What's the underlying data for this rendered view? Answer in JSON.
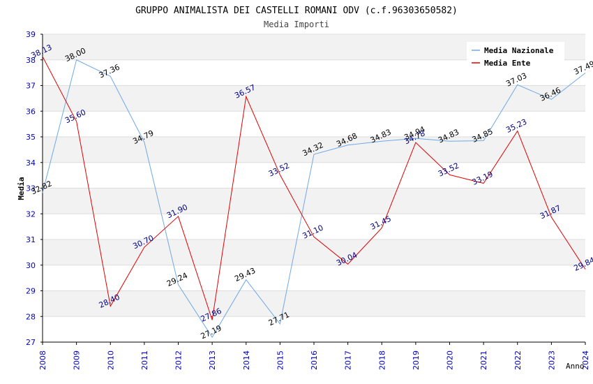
{
  "chart_data": {
    "type": "line",
    "title": "GRUPPO ANIMALISTA DEI CASTELLI ROMANI ODV (c.f.96303650582)",
    "subtitle": "Media Importi",
    "xlabel": "Anno",
    "ylabel": "Media",
    "x": [
      "2008",
      "2009",
      "2010",
      "2011",
      "2012",
      "2013",
      "2014",
      "2015",
      "2016",
      "2017",
      "2018",
      "2019",
      "2020",
      "2021",
      "2022",
      "2023",
      "2024"
    ],
    "ylim": [
      27,
      39
    ],
    "yticks": [
      "27",
      "28",
      "29",
      "30",
      "31",
      "32",
      "33",
      "34",
      "35",
      "36",
      "37",
      "38",
      "39"
    ],
    "grid": true,
    "legend_position": "top-right",
    "series": [
      {
        "name": "Media Nazionale",
        "color": "#6fa8e8",
        "label_color": "#000000",
        "values": [
          32.82,
          38.0,
          37.36,
          34.79,
          29.24,
          27.19,
          29.43,
          27.71,
          34.32,
          34.68,
          34.83,
          34.94,
          34.83,
          34.85,
          37.03,
          36.46,
          37.49
        ],
        "labels": [
          "32.82",
          "38.00",
          "37.36",
          "34.79",
          "29.24",
          "27.19",
          "29.43",
          "27.71",
          "34.32",
          "34.68",
          "34.83",
          "34.94",
          "34.83",
          "34.85",
          "37.03",
          "36.46",
          "37.49"
        ]
      },
      {
        "name": "Media Ente",
        "color": "#e00000",
        "label_color": "#00007f",
        "values": [
          38.13,
          35.6,
          28.4,
          30.7,
          31.9,
          27.86,
          36.57,
          33.52,
          31.1,
          30.04,
          31.45,
          34.78,
          33.52,
          33.19,
          35.23,
          31.87,
          29.84
        ],
        "labels": [
          "38.13",
          "35.60",
          "28.40",
          "30.70",
          "31.90",
          "27.86",
          "36.57",
          "33.52",
          "31.10",
          "30.04",
          "31.45",
          "34.78",
          "33.52",
          "33.19",
          "35.23",
          "31.87",
          "29.84"
        ]
      }
    ]
  },
  "colors": {
    "tick_label": "#0000c0",
    "band": "#f2f2f2",
    "grid": "#dddddd",
    "axis": "#000000"
  }
}
